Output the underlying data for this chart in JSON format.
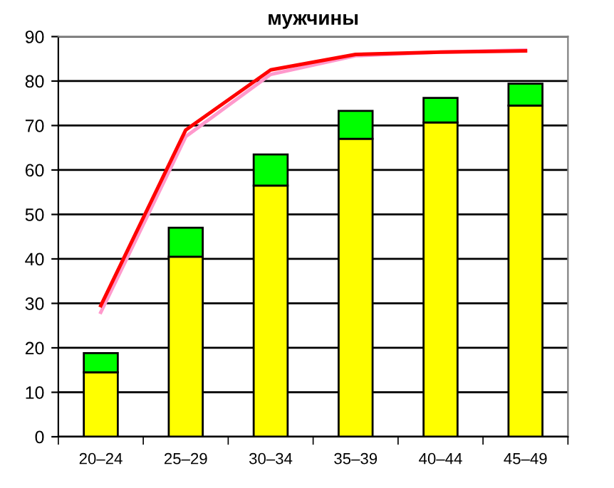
{
  "chart_data": {
    "type": "bar",
    "title": "мужчины",
    "categories": [
      "20–24",
      "25–29",
      "30–34",
      "35–39",
      "40–44",
      "45–49"
    ],
    "stacked": true,
    "series": [
      {
        "color": "#ffff00",
        "values": [
          14.5,
          40.5,
          56.5,
          67,
          70.7,
          74.5
        ]
      },
      {
        "color": "#00ff00",
        "values": [
          4.3,
          6.5,
          7.0,
          6.3,
          5.5,
          4.9
        ]
      },
      {
        "type": "line",
        "color": "#ff99cc",
        "values": [
          28,
          67.5,
          81.5,
          85.7,
          86.5,
          87
        ]
      },
      {
        "type": "line",
        "color": "#ff0000",
        "values": [
          29.5,
          69,
          82.5,
          86,
          86.5,
          86.8
        ]
      }
    ],
    "ylim": [
      0,
      90
    ],
    "yticks": [
      0,
      10,
      20,
      30,
      40,
      50,
      60,
      70,
      80,
      90
    ],
    "grid": "y",
    "legend": false,
    "marker": "none",
    "line_style": "solid"
  }
}
